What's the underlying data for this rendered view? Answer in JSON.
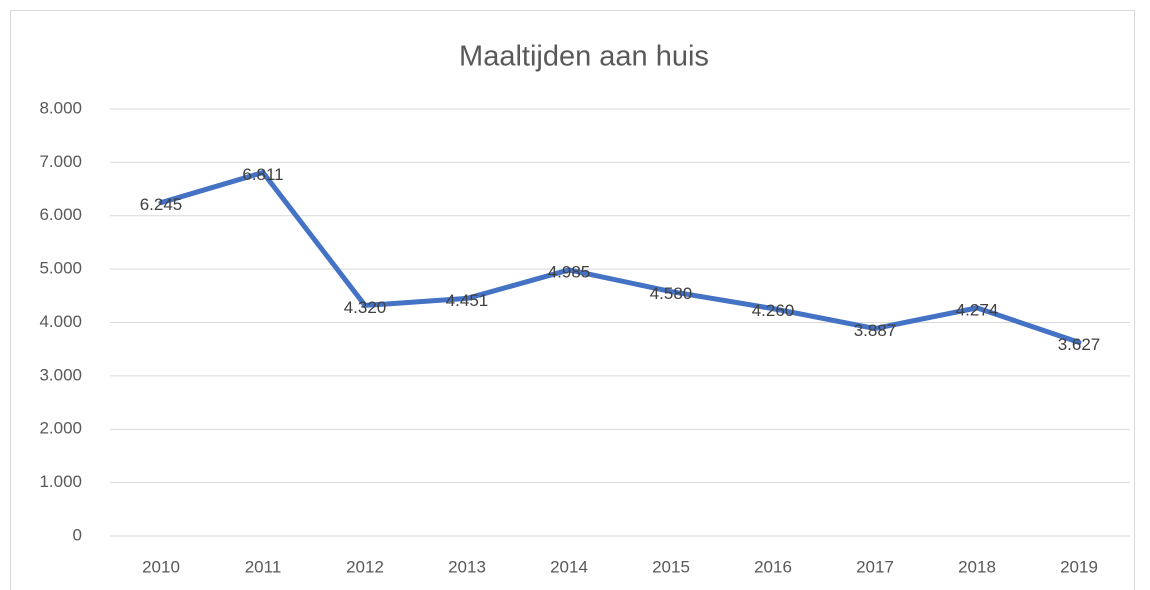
{
  "chart_data": {
    "type": "line",
    "title": "Maaltijden aan huis",
    "categories": [
      "2010",
      "2011",
      "2012",
      "2013",
      "2014",
      "2015",
      "2016",
      "2017",
      "2018",
      "2019"
    ],
    "series": [
      {
        "color": "#4472c4",
        "values": [
          6245,
          6811,
          4320,
          4451,
          4985,
          4580,
          4260,
          3887,
          4274,
          3627
        ],
        "value_labels": [
          "6.245",
          "6.811",
          "4.320",
          "4.451",
          "4.985",
          "4.580",
          "4.260",
          "3.887",
          "4.274",
          "3.627"
        ]
      }
    ],
    "ylim": [
      0,
      8000
    ],
    "yticks": [
      0,
      {
        "value": 1000,
        "label": "1.000"
      },
      {
        "value": 2000,
        "label": "2.000"
      },
      {
        "value": 3000,
        "label": "3.000"
      },
      {
        "value": 4000,
        "label": "4.000"
      },
      {
        "value": 5000,
        "label": "5.000"
      },
      {
        "value": 6000,
        "label": "6.000"
      },
      {
        "value": 7000,
        "label": "7.000"
      },
      {
        "value": 8000,
        "label": "8.000"
      }
    ],
    "grid": true
  }
}
